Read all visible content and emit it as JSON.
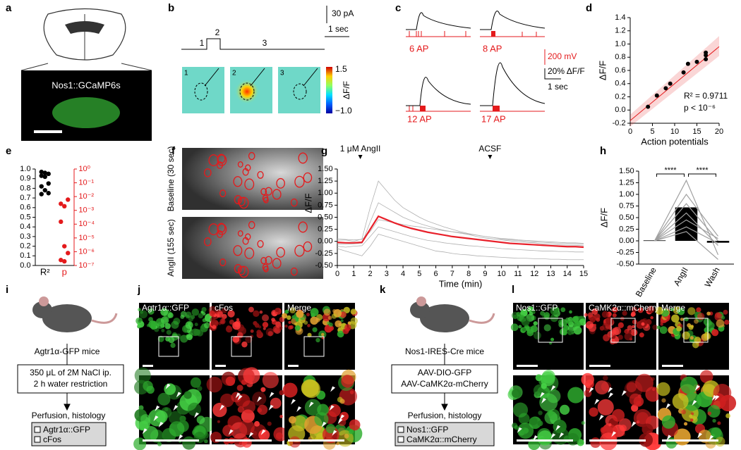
{
  "panel_labels": [
    "a",
    "b",
    "c",
    "d",
    "e",
    "f",
    "g",
    "h",
    "i",
    "j",
    "k",
    "l"
  ],
  "panel_a": {
    "label": "Nos1::GCaMP6s"
  },
  "panel_b": {
    "scale_current": "30 pA",
    "scale_time": "1 sec",
    "phases": [
      "1",
      "2",
      "3"
    ],
    "colorbar": {
      "max": "1.5",
      "min": "−1.0",
      "label": "ΔF/F"
    }
  },
  "panel_c": {
    "traces": [
      "6 AP",
      "8 AP",
      "12 AP",
      "17 AP"
    ],
    "scale_voltage": "200 mV",
    "scale_dff": "20% ΔF/F",
    "scale_time": "1 sec"
  },
  "panel_f": {
    "labels": [
      "Baseline (30 sec)",
      "AngII (155 sec)"
    ]
  },
  "chart_data": [
    {
      "type": "scatter",
      "xlabel": "Action potentials",
      "ylabel": "ΔF/F",
      "x": [
        4,
        6,
        8,
        9,
        12,
        13,
        15,
        17,
        17,
        17
      ],
      "values": [
        0.05,
        0.22,
        0.33,
        0.4,
        0.57,
        0.7,
        0.73,
        0.77,
        0.83,
        0.87
      ],
      "color": "#000000",
      "fit": {
        "x": [
          0,
          20
        ],
        "y": [
          -0.16,
          0.96
        ],
        "upper": [
          -0.07,
          1.12
        ],
        "lower": [
          -0.25,
          0.82
        ],
        "color": "#e41a1c"
      },
      "annotations": [
        "R² = 0.9711",
        "p < 10⁻⁶"
      ],
      "xlim": [
        0,
        20
      ],
      "xticks": [
        0,
        5,
        10,
        15,
        20
      ],
      "ylim": [
        -0.2,
        1.4
      ],
      "yticks": [
        {
          "value": -0.2,
          "label": "-0.2"
        },
        {
          "value": 0,
          "label": "0.0"
        },
        {
          "value": 0.2,
          "label": "0.2"
        },
        {
          "value": 0.4,
          "label": "0.4"
        },
        {
          "value": 0.6,
          "label": "0.6"
        },
        {
          "value": 0.8,
          "label": "0.8"
        },
        {
          "value": 1,
          "label": "1.0"
        },
        {
          "value": 1.2,
          "label": "1.2"
        },
        {
          "value": 1.4,
          "label": "1.4"
        }
      ]
    },
    {
      "type": "strip",
      "categories": [
        "R²",
        "p"
      ],
      "series": [
        {
          "color": "#000000",
          "values": [
            0.97,
            0.96,
            0.95,
            0.93,
            0.92,
            0.85,
            0.82,
            0.78,
            0.75,
            0.74
          ]
        },
        {
          "color": "#e41a1c",
          "axis": "y2",
          "values": [
            0.003,
            0.002,
            0.006,
            0.00015,
            2.5e-06,
            8e-07,
            2.5e-07,
            2e-07
          ]
        }
      ],
      "ylim": [
        0,
        1
      ],
      "yticks": [
        {
          "value": 0,
          "label": "0.0"
        },
        {
          "value": 0.1,
          "label": "0.1"
        },
        {
          "value": 0.2,
          "label": "0.2"
        },
        {
          "value": 0.3,
          "label": "0.3"
        },
        {
          "value": 0.4,
          "label": "0.4"
        },
        {
          "value": 0.5,
          "label": "0.5"
        },
        {
          "value": 0.6,
          "label": "0.6"
        },
        {
          "value": 0.7,
          "label": "0.7"
        },
        {
          "value": 0.8,
          "label": "0.8"
        },
        {
          "value": 0.9,
          "label": "0.9"
        },
        {
          "value": 1,
          "label": "1.0"
        }
      ],
      "y2log": true,
      "y2lim": [
        1e-07,
        1
      ],
      "y2ticks": [
        {
          "value": 1,
          "label": "10⁰"
        },
        {
          "value": 0.1,
          "label": "10⁻¹"
        },
        {
          "value": 0.01,
          "label": "10⁻²"
        },
        {
          "value": 0.001,
          "label": "10⁻³"
        },
        {
          "value": 0.0001,
          "label": "10⁻⁴"
        },
        {
          "value": 1e-05,
          "label": "10⁻⁵"
        },
        {
          "value": 1e-06,
          "label": "10⁻⁶"
        },
        {
          "value": 1e-07,
          "label": "10⁻⁷"
        }
      ]
    },
    {
      "type": "line",
      "xlabel": "Time (min)",
      "ylabel": "ΔF/F",
      "x": [
        0,
        0.5,
        1,
        1.5,
        2,
        2.5,
        3,
        3.5,
        4,
        4.5,
        5,
        5.5,
        6,
        6.5,
        7,
        7.5,
        8,
        8.5,
        9,
        9.5,
        10,
        10.5,
        11,
        11.5,
        12,
        12.5,
        13,
        13.5,
        14,
        14.5,
        15
      ],
      "series": [
        {
          "color": "#b0b0b0",
          "values": [
            0.02,
            0.03,
            0.0,
            0.05,
            0.7,
            1.25,
            1.05,
            0.85,
            0.7,
            0.6,
            0.5,
            0.42,
            0.36,
            0.3,
            0.25,
            0.2,
            0.16,
            0.13,
            0.1,
            0.08,
            0.05,
            0.03,
            0.02,
            0.0,
            -0.01,
            -0.02,
            -0.03,
            -0.04,
            -0.05,
            -0.05,
            -0.06
          ]
        },
        {
          "color": "#b0b0b0",
          "values": [
            -0.05,
            -0.06,
            -0.05,
            -0.04,
            0.4,
            0.8,
            0.7,
            0.6,
            0.5,
            0.43,
            0.37,
            0.32,
            0.27,
            0.23,
            0.2,
            0.17,
            0.14,
            0.1,
            0.07,
            0.05,
            0.03,
            0.01,
            -0.01,
            -0.02,
            -0.03,
            -0.05,
            -0.06,
            -0.07,
            -0.08,
            -0.08,
            -0.09
          ]
        },
        {
          "color": "#b0b0b0",
          "values": [
            -0.1,
            -0.12,
            -0.1,
            -0.09,
            0.1,
            0.3,
            0.25,
            0.2,
            0.15,
            0.1,
            0.06,
            0.02,
            0.0,
            -0.03,
            -0.05,
            -0.07,
            -0.09,
            -0.1,
            -0.12,
            -0.13,
            -0.15,
            -0.16,
            -0.17,
            -0.18,
            -0.19,
            -0.2,
            -0.2,
            -0.21,
            -0.21,
            -0.22,
            -0.22
          ]
        },
        {
          "color": "#b0b0b0",
          "values": [
            0.05,
            0.04,
            0.03,
            0.04,
            0.2,
            0.45,
            0.42,
            0.38,
            0.35,
            0.32,
            0.3,
            0.27,
            0.25,
            0.22,
            0.2,
            0.18,
            0.15,
            0.13,
            0.1,
            0.08,
            0.06,
            0.05,
            0.03,
            0.02,
            0.01,
            0.0,
            -0.01,
            -0.02,
            -0.03,
            -0.03,
            -0.04
          ]
        },
        {
          "color": "#b0b0b0",
          "values": [
            -0.15,
            -0.2,
            -0.25,
            -0.3,
            -0.1,
            0.15,
            0.1,
            0.05,
            0.0,
            -0.05,
            -0.1,
            -0.15,
            -0.2,
            -0.22,
            -0.25,
            -0.27,
            -0.28,
            -0.3,
            -0.31,
            -0.32,
            -0.33,
            -0.34,
            -0.35,
            -0.35,
            -0.36,
            -0.36,
            -0.37,
            -0.37,
            -0.38,
            -0.38,
            -0.38
          ]
        },
        {
          "color": "#e8202a",
          "values": [
            -0.02,
            -0.03,
            -0.03,
            -0.02,
            0.25,
            0.52,
            0.45,
            0.38,
            0.32,
            0.27,
            0.23,
            0.19,
            0.16,
            0.13,
            0.1,
            0.08,
            0.06,
            0.04,
            0.02,
            0.0,
            -0.02,
            -0.04,
            -0.05,
            -0.06,
            -0.07,
            -0.08,
            -0.09,
            -0.1,
            -0.11,
            -0.11,
            -0.12
          ]
        }
      ],
      "annotations": [
        {
          "text": "1 μM AngII",
          "x": 1.4
        },
        {
          "text": "ACSF",
          "x": 9.3
        }
      ],
      "xlim": [
        0,
        15
      ],
      "xticks": [
        0,
        1,
        2,
        3,
        4,
        5,
        6,
        7,
        8,
        9,
        10,
        11,
        12,
        13,
        14,
        15
      ],
      "ylim": [
        -0.5,
        1.5
      ],
      "yticks": [
        {
          "value": -0.5,
          "label": "-0.50"
        },
        {
          "value": -0.25,
          "label": "-0.25"
        },
        {
          "value": 0,
          "label": "0.00"
        },
        {
          "value": 0.25,
          "label": "0.25"
        },
        {
          "value": 0.5,
          "label": "0.50"
        },
        {
          "value": 0.75,
          "label": "0.75"
        },
        {
          "value": 1,
          "label": "1.00"
        },
        {
          "value": 1.25,
          "label": "1.25"
        },
        {
          "value": 1.5,
          "label": "1.50"
        }
      ]
    },
    {
      "type": "bar",
      "ylabel": "ΔF/F",
      "categories": [
        "Baseline",
        "AngII",
        "Wash"
      ],
      "values": [
        0.01,
        0.72,
        -0.04
      ],
      "color": "#000000",
      "paired": [
        [
          0.0,
          1.3,
          -0.3
        ],
        [
          0.0,
          1.0,
          0.1
        ],
        [
          0.0,
          0.8,
          0.0
        ],
        [
          0.0,
          0.6,
          -0.1
        ],
        [
          0.0,
          0.45,
          0.05
        ],
        [
          0.0,
          0.3,
          -0.05
        ],
        [
          0.0,
          0.2,
          -0.4
        ]
      ],
      "paired_color": "#a0a0a0",
      "significance": [
        "****",
        "****"
      ],
      "ylim": [
        -0.5,
        1.5
      ],
      "yticks": [
        {
          "value": -0.5,
          "label": "-0.50"
        },
        {
          "value": -0.25,
          "label": "-0.25"
        },
        {
          "value": 0,
          "label": "0.00"
        },
        {
          "value": 0.25,
          "label": "0.25"
        },
        {
          "value": 0.5,
          "label": "0.50"
        },
        {
          "value": 0.75,
          "label": "0.75"
        },
        {
          "value": 1,
          "label": "1.00"
        },
        {
          "value": 1.25,
          "label": "1.25"
        },
        {
          "value": 1.5,
          "label": "1.50"
        }
      ]
    }
  ],
  "panel_i": {
    "mouse": "Agtr1α-GFP mice",
    "step": [
      "350 μL of 2M NaCl ip.",
      "2 h water restriction"
    ],
    "end": "Perfusion, histology",
    "checks": [
      "Agtr1α::GFP",
      "cFos"
    ]
  },
  "panel_j": {
    "labels": [
      "Agtr1α::GFP",
      "cFos",
      "Merge"
    ]
  },
  "panel_k": {
    "mouse": "Nos1-IRES-Cre mice",
    "step": [
      "AAV-DIO-GFP",
      "AAV-CaMK2α-mCherry"
    ],
    "end": "Perfusion, histology",
    "checks": [
      "Nos1::GFP",
      "CaMK2α::mCherry"
    ]
  },
  "panel_l": {
    "labels": [
      "Nos1::GFP",
      "CaMK2α::mCherry",
      "Merge"
    ]
  }
}
